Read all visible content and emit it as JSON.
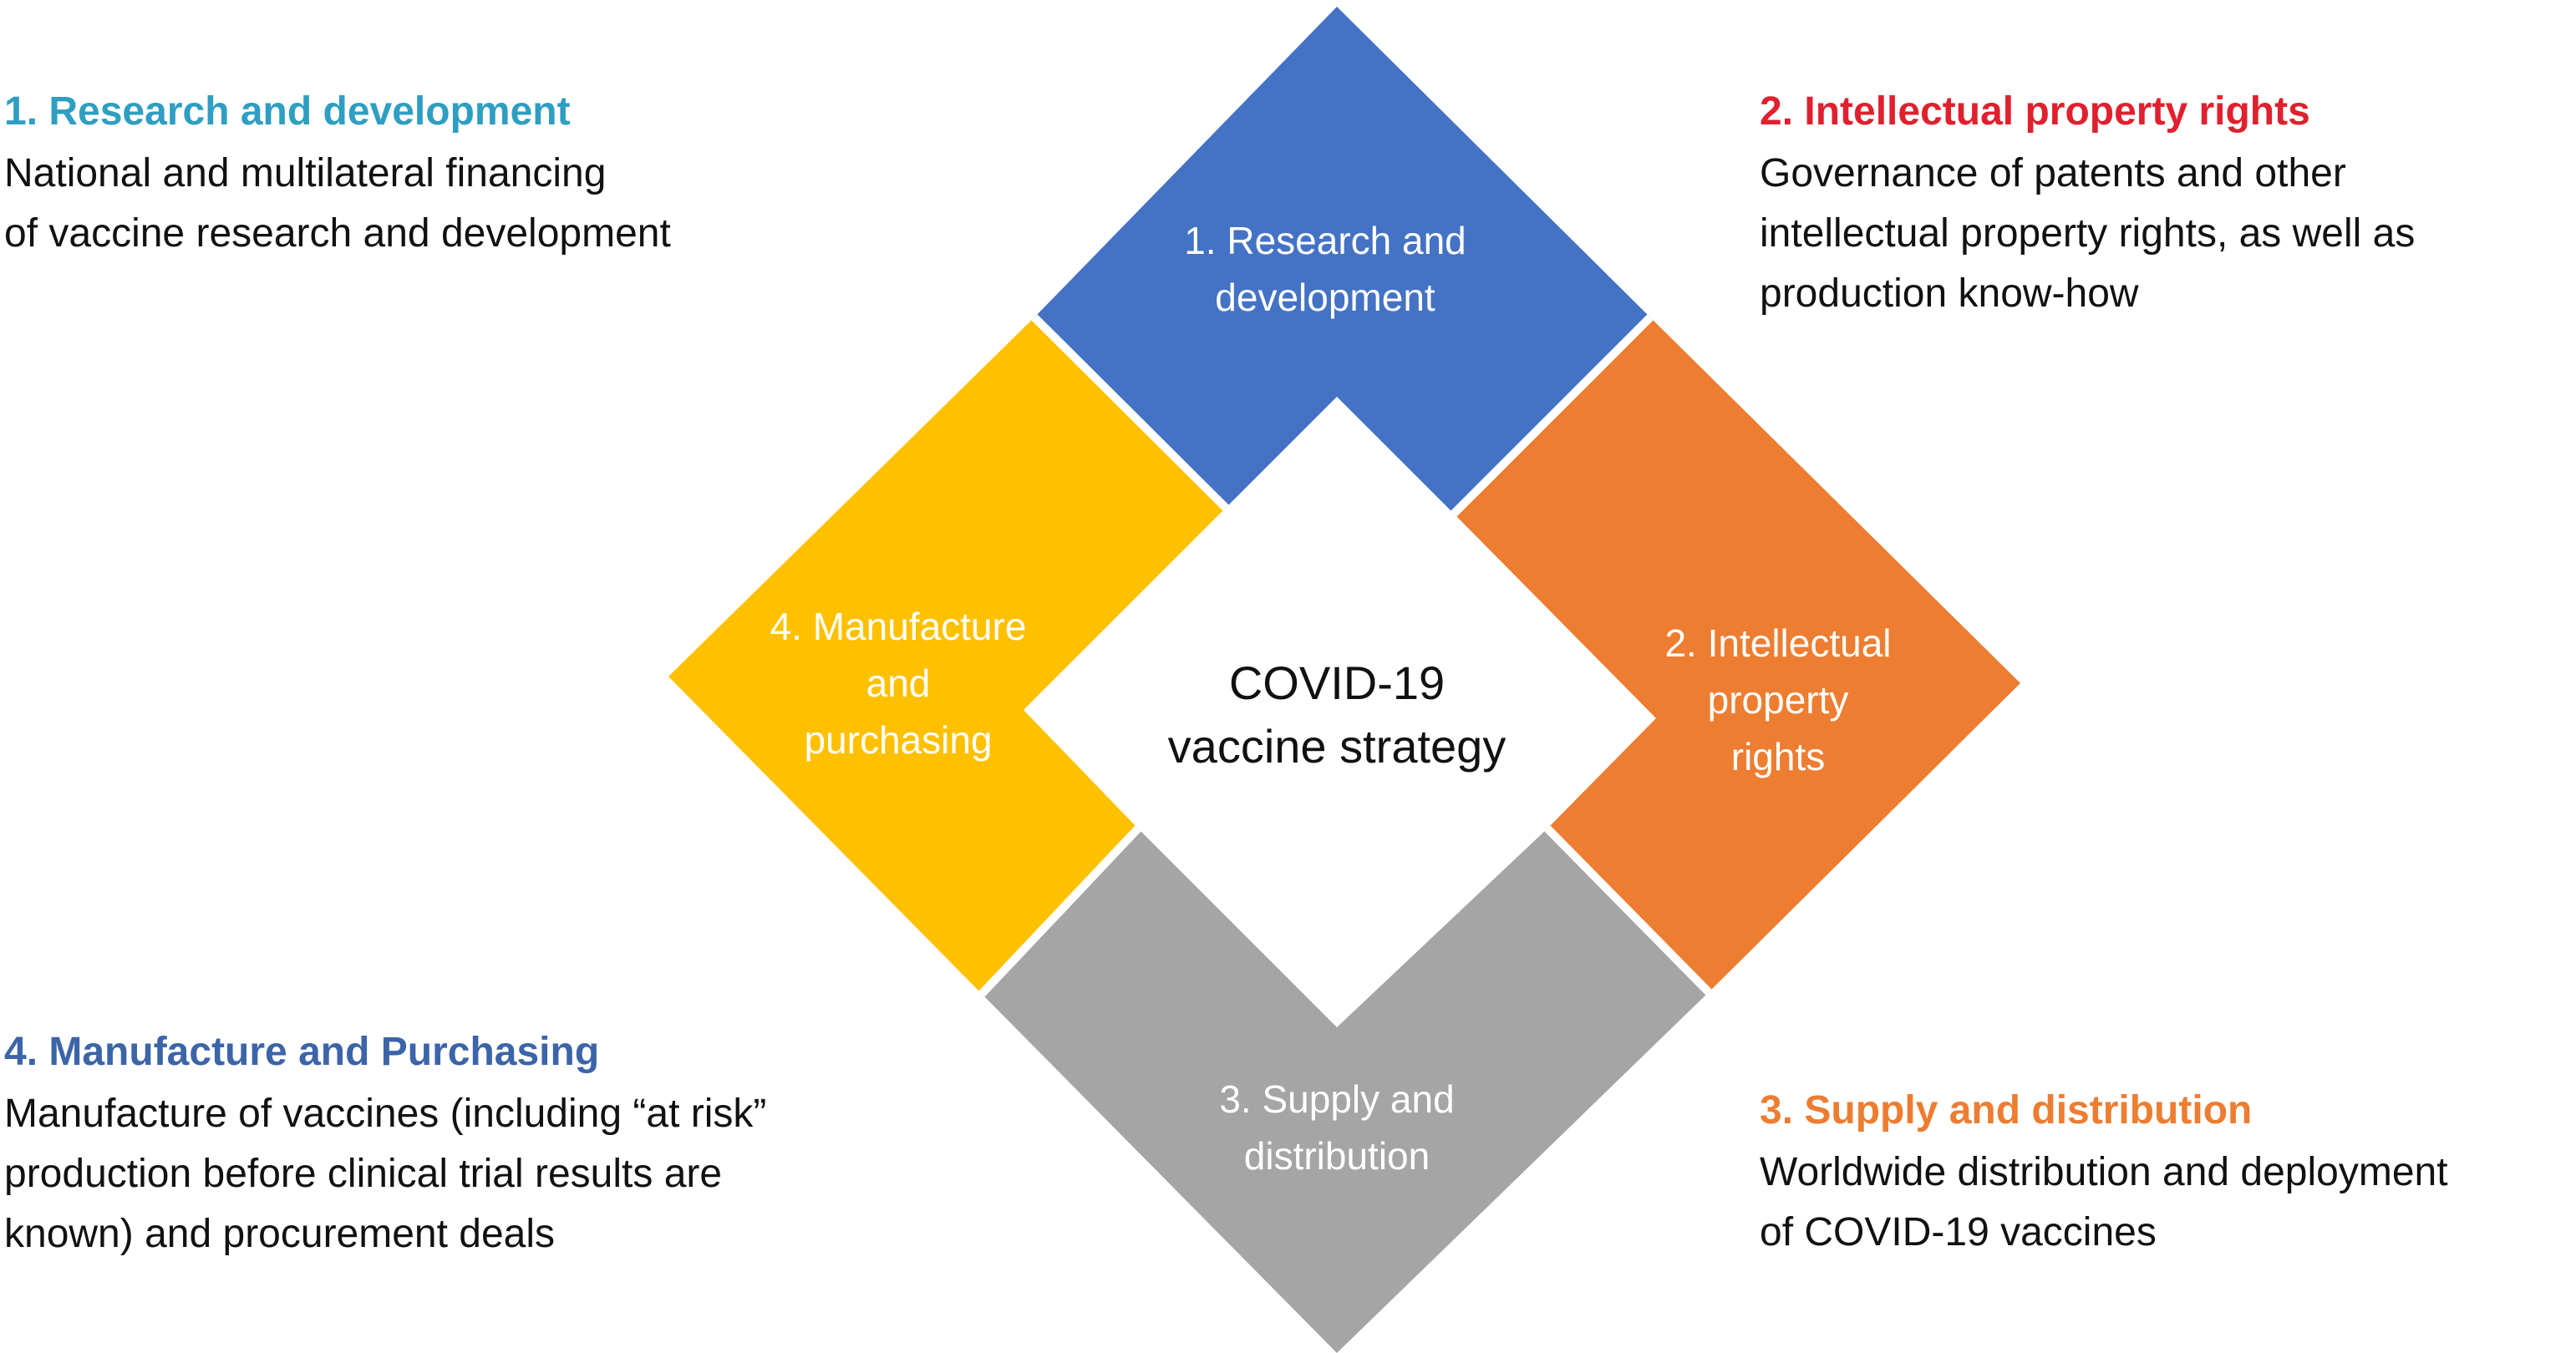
{
  "center": {
    "label": "COVID-19\nvaccine strategy"
  },
  "segments": [
    {
      "id": "research",
      "label": "1. Research and\ndevelopment",
      "color": "#4472C4"
    },
    {
      "id": "ip",
      "label": "2. Intellectual\nproperty\nrights",
      "color": "#ED7D31"
    },
    {
      "id": "supply",
      "label": "3. Supply and\ndistribution",
      "color": "#A5A5A5"
    },
    {
      "id": "manufacture",
      "label": "4. Manufacture\nand\npurchasing",
      "color": "#FFC000"
    }
  ],
  "descriptions": {
    "research": {
      "title": "1. Research and development",
      "body": "National and multilateral financing\nof vaccine research and development",
      "title_color": "#2E9EC2"
    },
    "ip": {
      "title": "2. Intellectual property rights",
      "body": "Governance of patents and other\nintellectual property rights, as well as\nproduction know-how",
      "title_color": "#E0202E"
    },
    "supply": {
      "title": "3. Supply and distribution",
      "body": "Worldwide distribution and deployment\nof COVID-19 vaccines",
      "title_color": "#ED7D31"
    },
    "manufacture": {
      "title": "4. Manufacture and Purchasing",
      "body": "Manufacture of vaccines (including “at risk”\nproduction before clinical trial results are\nknown) and procurement deals",
      "title_color": "#3C64A8"
    }
  }
}
